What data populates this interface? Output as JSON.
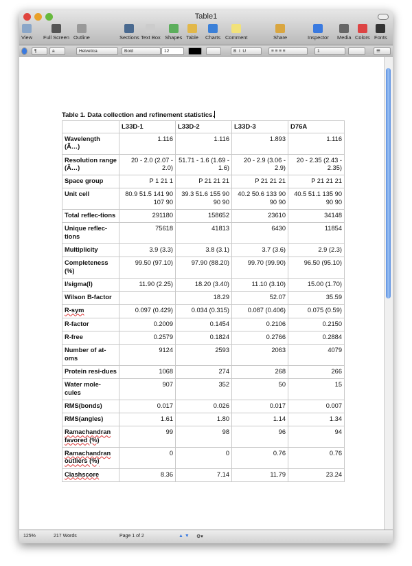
{
  "window": {
    "title": "Table1"
  },
  "toolbar": [
    {
      "label": "View"
    },
    {
      "label": "Full Screen"
    },
    {
      "label": "Outline"
    },
    {
      "label": "Sections"
    },
    {
      "label": "Text Box"
    },
    {
      "label": "Shapes"
    },
    {
      "label": "Table"
    },
    {
      "label": "Charts"
    },
    {
      "label": "Comment"
    },
    {
      "label": "Share"
    },
    {
      "label": "Inspector"
    },
    {
      "label": "Media"
    },
    {
      "label": "Colors"
    },
    {
      "label": "Fonts"
    }
  ],
  "format_bar": {
    "paragraph_style": "¶",
    "char_style": "a",
    "font": "Helvetica",
    "weight": "Bold",
    "size": "12",
    "text_color": "#000000",
    "line_spacing": "1"
  },
  "document": {
    "caption": "Table 1.  Data collection and refinement statistics.",
    "columns": [
      "",
      "L33D-1",
      "L33D-2",
      "L33D-3",
      "D76A"
    ],
    "rows": [
      {
        "label": "Wavelength (Ã…)",
        "values": [
          "1.116",
          "1.116",
          "1.893",
          "1.116"
        ]
      },
      {
        "label": "Resolution range (Ã…)",
        "values": [
          "20  - 2.0 (2.07 - 2.0)",
          "51.71  - 1.6 (1.69 - 1.6)",
          "20  - 2.9 (3.06 - 2.9)",
          "20  - 2.35 (2.43 - 2.35)"
        ]
      },
      {
        "label": "Space group",
        "values": [
          "P 1 21 1",
          "P 21 21 21",
          "P 21 21 21",
          "P 21 21 21"
        ]
      },
      {
        "label": "Unit cell",
        "values": [
          "80.9 51.5 141 90 107 90",
          "39.3 51.6 155 90 90 90",
          "40.2 50.6 133 90 90 90",
          "40.5 51.1 135 90 90 90"
        ]
      },
      {
        "label": "Total reflec-tions",
        "values": [
          "291180",
          "158652",
          "23610",
          "34148"
        ]
      },
      {
        "label": "Unique reflec-tions",
        "values": [
          "75618",
          "41813",
          "6430",
          "11854"
        ]
      },
      {
        "label": "Multiplicity",
        "values": [
          "3.9 (3.3)",
          "3.8 (3.1)",
          "3.7 (3.6)",
          "2.9 (2.3)"
        ]
      },
      {
        "label": "Completeness (%)",
        "values": [
          "99.50 (97.10)",
          "97.90 (88.20)",
          "99.70 (99.90)",
          "96.50 (95.10)"
        ]
      },
      {
        "label": "I/sigma(I)",
        "values": [
          "11.90 (2.25)",
          "18.20 (3.40)",
          "11.10 (3.10)",
          "15.00 (1.70)"
        ]
      },
      {
        "label": "Wilson B-factor",
        "values": [
          "",
          "18.29",
          "52.07",
          "35.59"
        ]
      },
      {
        "label": "R-sym",
        "values": [
          "0.097 (0.429)",
          "0.034 (0.315)",
          "0.087 (0.406)",
          "0.075 (0.59)"
        ]
      },
      {
        "label": "R-factor",
        "values": [
          "0.2009",
          "0.1454",
          "0.2106",
          "0.2150"
        ]
      },
      {
        "label": "R-free",
        "values": [
          "0.2579",
          "0.1824",
          "0.2766",
          "0.2884"
        ]
      },
      {
        "label": "Number of at-oms",
        "values": [
          "9124",
          "2593",
          "2063",
          "4079"
        ]
      },
      {
        "label": "Protein resi-dues",
        "values": [
          "1068",
          "274",
          "268",
          "266"
        ]
      },
      {
        "label": "Water mole-cules",
        "values": [
          "907",
          "352",
          "50",
          "15"
        ]
      },
      {
        "label": "RMS(bonds)",
        "values": [
          "0.017",
          "0.026",
          "0.017",
          "0.007"
        ]
      },
      {
        "label": "RMS(angles)",
        "values": [
          "1.61",
          "1.80",
          "1.14",
          "1.34"
        ]
      },
      {
        "label": "Ramachandran favored (%)",
        "values": [
          "99",
          "98",
          "96",
          "94"
        ]
      },
      {
        "label": "Ramachandran outliers (%)",
        "values": [
          "0",
          "0",
          "0.76",
          "0.76"
        ]
      },
      {
        "label": "Clashscore",
        "values": [
          "8.36",
          "7.14",
          "11.79",
          "23.24"
        ]
      }
    ]
  },
  "status": {
    "zoom": "125%",
    "words": "217 Words",
    "page": "Page 1 of 2"
  }
}
